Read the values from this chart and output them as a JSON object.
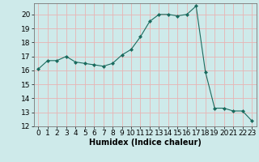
{
  "x": [
    0,
    1,
    2,
    3,
    4,
    5,
    6,
    7,
    8,
    9,
    10,
    11,
    12,
    13,
    14,
    15,
    16,
    17,
    18,
    19,
    20,
    21,
    22,
    23
  ],
  "y": [
    16.1,
    16.7,
    16.7,
    17.0,
    16.6,
    16.5,
    16.4,
    16.3,
    16.5,
    17.1,
    17.5,
    18.4,
    19.5,
    20.0,
    20.0,
    19.9,
    20.0,
    20.6,
    15.9,
    13.3,
    13.3,
    13.1,
    13.1,
    12.4
  ],
  "line_color": "#1a6b5e",
  "marker": "D",
  "marker_size": 2,
  "bg_color": "#ceeaea",
  "grid_color": "#e8b4b4",
  "xlabel": "Humidex (Indice chaleur)",
  "ylim": [
    12,
    20.8
  ],
  "xlim": [
    -0.5,
    23.5
  ],
  "yticks": [
    12,
    13,
    14,
    15,
    16,
    17,
    18,
    19,
    20
  ],
  "xticks": [
    0,
    1,
    2,
    3,
    4,
    5,
    6,
    7,
    8,
    9,
    10,
    11,
    12,
    13,
    14,
    15,
    16,
    17,
    18,
    19,
    20,
    21,
    22,
    23
  ],
  "xlabel_fontsize": 7,
  "tick_fontsize": 6.5
}
